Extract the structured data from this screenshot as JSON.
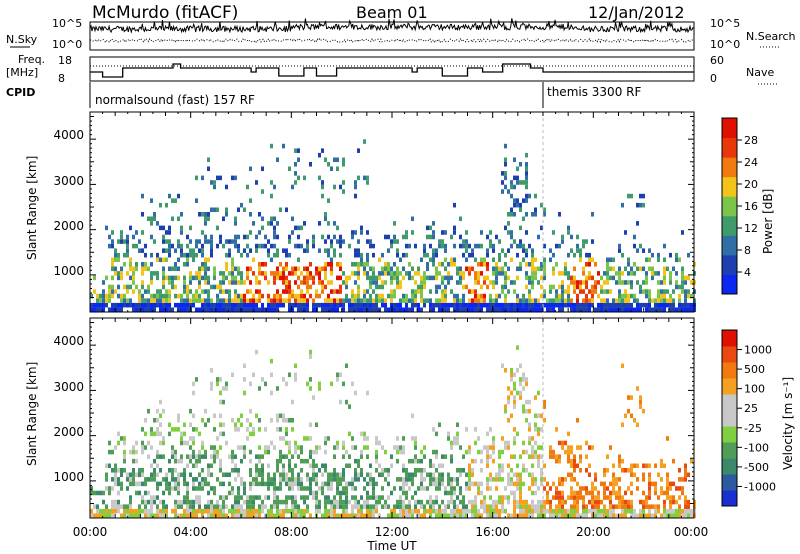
{
  "header": {
    "station": "McMurdo (fitACF)",
    "beam": "Beam 01",
    "date": "12/Jan/2012"
  },
  "summary": {
    "nsky_label": "N.Sky",
    "nsky_ticks": [
      "10^5",
      "10^0"
    ],
    "nsearch_label": "N.Search",
    "nsearch_ticks": [
      "10^5",
      "10^0"
    ],
    "freq_label_1": "Freq.",
    "freq_label_2": "[MHz]",
    "freq_ticks": [
      "18",
      "8"
    ],
    "nave_label": "Nave",
    "nave_ticks": [
      "60",
      "0"
    ],
    "cpid_label": "CPID",
    "cpid_modes": [
      {
        "name": "normalsound (fast) 157 RF",
        "start_h": 0,
        "end_h": 18
      },
      {
        "name": "themis 3300 RF",
        "start_h": 18,
        "end_h": 24
      }
    ]
  },
  "axes": {
    "xlabel": "Time UT",
    "x_ticks": [
      "00:00",
      "04:00",
      "08:00",
      "12:00",
      "16:00",
      "20:00",
      "00:00"
    ],
    "ylabel": "Slant Range [km]",
    "y_ticks": [
      "4000",
      "3000",
      "2000",
      "1000"
    ]
  },
  "power_cbar": {
    "label": "Power [dB]",
    "ticks": [
      "28",
      "24",
      "20",
      "16",
      "12",
      "8",
      "4"
    ],
    "colors": [
      "#0b28f0",
      "#1d3fb0",
      "#2f6fa6",
      "#3f9a6c",
      "#7bc44a",
      "#f2c41a",
      "#f07a10",
      "#e8380a",
      "#e01000"
    ]
  },
  "velocity_cbar": {
    "label": "Velocity [m s⁻¹]",
    "ticks": [
      "1000",
      "500",
      "100",
      "25",
      "-25",
      "-100",
      "-500",
      "-1000"
    ],
    "colors": [
      "#1a2fd0",
      "#2c5a9e",
      "#3a8a6a",
      "#4f9d56",
      "#7fcf3f",
      "#c8c8c8",
      "#c8c8c8",
      "#f5a020",
      "#f07a10",
      "#ea4a10",
      "#e01000"
    ]
  },
  "chart_data": {
    "type": "heatmap",
    "title": "McMurdo (fitACF) Beam 01 12/Jan/2012",
    "xlabel": "Time UT",
    "ylabel": "Slant Range [km]",
    "x_range_hours": [
      0,
      24
    ],
    "y_range_km": [
      180,
      4600
    ],
    "panels": [
      "Power [dB]",
      "Velocity [m s⁻¹]"
    ],
    "power_range_db": [
      0,
      32
    ],
    "velocity_range_ms": [
      -1000,
      1000
    ],
    "cpid_switch_hour": 18,
    "grid": false
  }
}
